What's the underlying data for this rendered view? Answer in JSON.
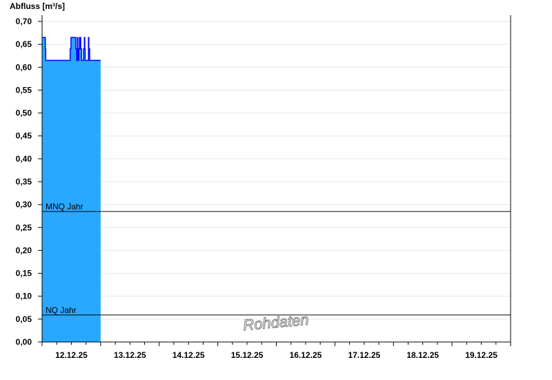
{
  "chart_data": {
    "type": "area",
    "title": "",
    "ylabel": "Abfluss [m³/s]",
    "xlabel": "",
    "ylim": [
      0,
      0.7136
    ],
    "xlim": [
      "12.12.25",
      "20.12.25"
    ],
    "y_ticks": [
      "0,00",
      "0,05",
      "0,10",
      "0,15",
      "0,20",
      "0,25",
      "0,30",
      "0,35",
      "0,40",
      "0,45",
      "0,50",
      "0,55",
      "0,60",
      "0,65",
      "0,70"
    ],
    "x_ticks": [
      "12.12.25",
      "13.12.25",
      "14.12.25",
      "15.12.25",
      "16.12.25",
      "17.12.25",
      "18.12.25",
      "19.12.25"
    ],
    "grid": true,
    "step": true,
    "series_color": "#29a8ff",
    "line_color": "#0000ff",
    "series_date": "12.12.25",
    "series": [
      {
        "points": [
          [
            "00:00",
            0.665
          ],
          [
            "01:20",
            0.64
          ],
          [
            "01:30",
            0.615
          ],
          [
            "11:30",
            0.64
          ],
          [
            "11:50",
            0.665
          ],
          [
            "13:50",
            0.64
          ],
          [
            "14:10",
            0.615
          ],
          [
            "14:30",
            0.665
          ],
          [
            "14:40",
            0.615
          ],
          [
            "15:00",
            0.64
          ],
          [
            "15:20",
            0.665
          ],
          [
            "15:30",
            0.64
          ],
          [
            "15:40",
            0.665
          ],
          [
            "15:50",
            0.64
          ],
          [
            "16:10",
            0.615
          ],
          [
            "17:00",
            0.64
          ],
          [
            "17:20",
            0.665
          ],
          [
            "17:30",
            0.64
          ],
          [
            "17:40",
            0.615
          ],
          [
            "19:00",
            0.665
          ],
          [
            "19:10",
            0.64
          ],
          [
            "19:30",
            0.615
          ],
          [
            "24:00",
            0.615
          ]
        ]
      }
    ],
    "reference_lines": [
      {
        "label": "MNQ Jahr",
        "value": 0.285
      },
      {
        "label": "NQ Jahr",
        "value": 0.059
      }
    ],
    "watermark": "Rohdaten"
  }
}
